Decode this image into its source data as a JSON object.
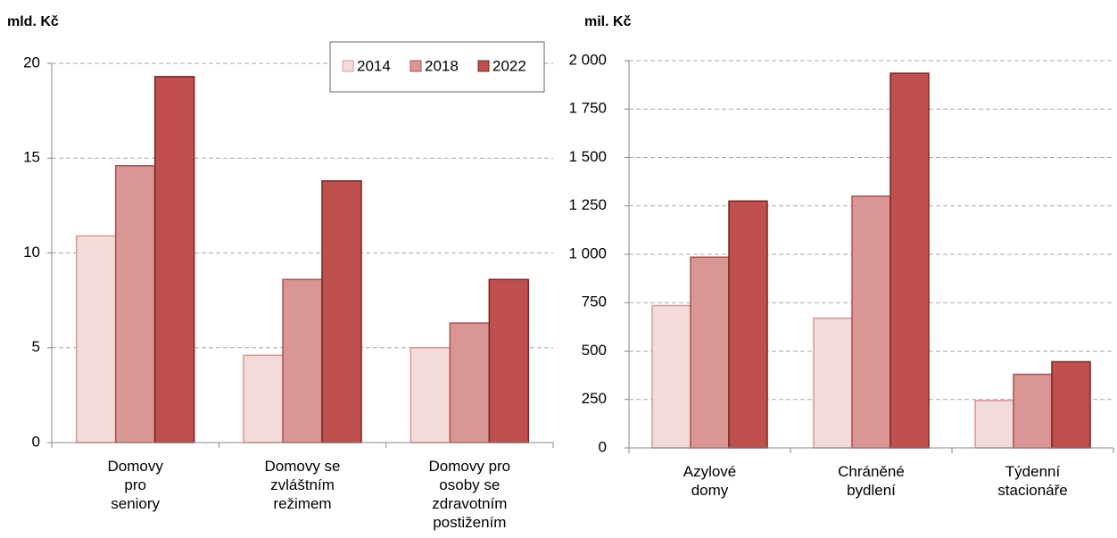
{
  "chart_data": [
    {
      "type": "bar",
      "y_label": "mld. Kč",
      "categories": [
        "Domovy\npro\nseniory",
        "Domovy se\nzvláštním\nrežimem",
        "Domovy pro\nosoby se\nzdravotním\npostižením"
      ],
      "series": [
        {
          "name": "2014",
          "color": "#f2dcdb",
          "stroke": "#d99694",
          "values": [
            10.9,
            4.6,
            5.0
          ]
        },
        {
          "name": "2018",
          "color": "#d99694",
          "stroke": "#b05050",
          "values": [
            14.6,
            8.6,
            6.3
          ]
        },
        {
          "name": "2022",
          "color": "#c0504d",
          "stroke": "#7a2424",
          "values": [
            19.3,
            13.8,
            8.6
          ]
        }
      ],
      "ylim": [
        0,
        20
      ],
      "yticks": [
        0,
        5,
        10,
        15,
        20
      ],
      "grid": true,
      "legend": "top-right"
    },
    {
      "type": "bar",
      "y_label": "mil. Kč",
      "categories": [
        "Azylové\ndomy",
        "Chráněné\nbydlení",
        "Týdenní\nstacionáře"
      ],
      "series": [
        {
          "color": "#f2dcdb",
          "stroke": "#d99694",
          "values": [
            735,
            670,
            245
          ]
        },
        {
          "color": "#d99694",
          "stroke": "#b05050",
          "values": [
            985,
            1300,
            380
          ]
        },
        {
          "color": "#c0504d",
          "stroke": "#7a2424",
          "values": [
            1275,
            1935,
            445
          ]
        }
      ],
      "ylim": [
        0,
        2000
      ],
      "yticks": [
        0,
        250,
        500,
        750,
        {
          "value": 1000,
          "label": "1 000"
        },
        {
          "value": 1250,
          "label": "1 250"
        },
        {
          "value": 1500,
          "label": "1 500"
        },
        {
          "value": 1750,
          "label": "1 750"
        },
        {
          "value": 2000,
          "label": "2 000"
        }
      ],
      "grid": true
    }
  ]
}
